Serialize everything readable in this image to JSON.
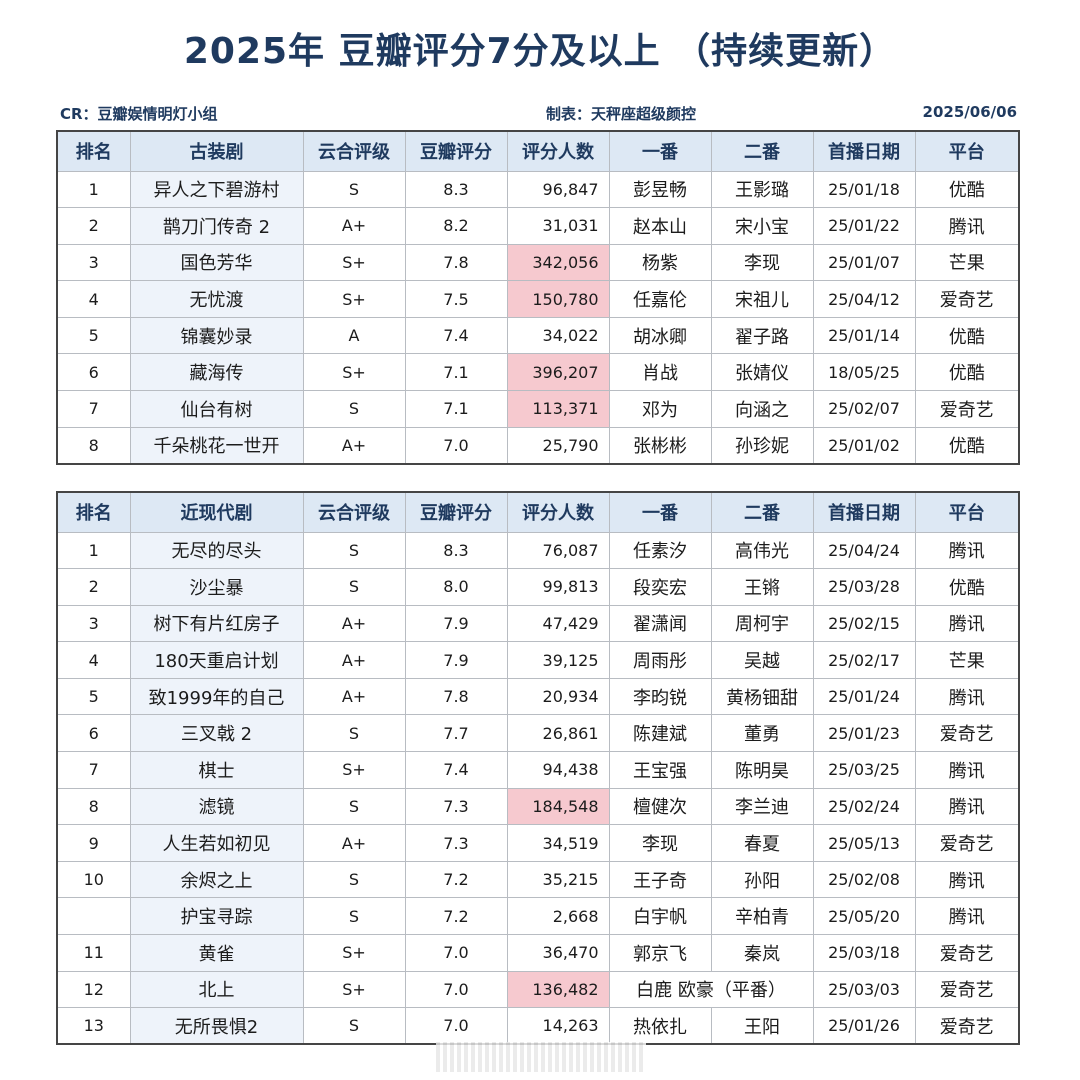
{
  "title": "2025年 豆瓣评分7分及以上 （持续更新）",
  "meta": {
    "cr": "CR：豆瓣娱情明灯小组",
    "maker": "制表：天秤座超级颜控",
    "date": "2025/06/06"
  },
  "colors": {
    "title": "#1f3a5f",
    "header_bg": "#dde8f4",
    "title_col_bg": "#eef3fa",
    "highlight": "#f6c9cf"
  },
  "costume": {
    "headers": [
      "排名",
      "古装剧",
      "云合评级",
      "豆瓣评分",
      "评分人数",
      "一番",
      "二番",
      "首播日期",
      "平台"
    ],
    "rows": [
      {
        "rank": "1",
        "title": "异人之下碧游村",
        "grade": "S",
        "score": "8.3",
        "count": "96,847",
        "lead1": "彭昱畅",
        "lead2": "王影璐",
        "date": "25/01/18",
        "platform": "优酷",
        "highlight": false
      },
      {
        "rank": "2",
        "title": "鹊刀门传奇 2",
        "grade": "A+",
        "score": "8.2",
        "count": "31,031",
        "lead1": "赵本山",
        "lead2": "宋小宝",
        "date": "25/01/22",
        "platform": "腾讯",
        "highlight": false
      },
      {
        "rank": "3",
        "title": "国色芳华",
        "grade": "S+",
        "score": "7.8",
        "count": "342,056",
        "lead1": "杨紫",
        "lead2": "李现",
        "date": "25/01/07",
        "platform": "芒果",
        "highlight": true
      },
      {
        "rank": "4",
        "title": "无忧渡",
        "grade": "S+",
        "score": "7.5",
        "count": "150,780",
        "lead1": "任嘉伦",
        "lead2": "宋祖儿",
        "date": "25/04/12",
        "platform": "爱奇艺",
        "highlight": true
      },
      {
        "rank": "5",
        "title": "锦囊妙录",
        "grade": "A",
        "score": "7.4",
        "count": "34,022",
        "lead1": "胡冰卿",
        "lead2": "翟子路",
        "date": "25/01/14",
        "platform": "优酷",
        "highlight": false
      },
      {
        "rank": "6",
        "title": "藏海传",
        "grade": "S+",
        "score": "7.1",
        "count": "396,207",
        "lead1": "肖战",
        "lead2": "张婧仪",
        "date": "18/05/25",
        "platform": "优酷",
        "highlight": true
      },
      {
        "rank": "7",
        "title": "仙台有树",
        "grade": "S",
        "score": "7.1",
        "count": "113,371",
        "lead1": "邓为",
        "lead2": "向涵之",
        "date": "25/02/07",
        "platform": "爱奇艺",
        "highlight": true
      },
      {
        "rank": "8",
        "title": "千朵桃花一世开",
        "grade": "A+",
        "score": "7.0",
        "count": "25,790",
        "lead1": "张彬彬",
        "lead2": "孙珍妮",
        "date": "25/01/02",
        "platform": "优酷",
        "highlight": false
      }
    ]
  },
  "modern": {
    "headers": [
      "排名",
      "近现代剧",
      "云合评级",
      "豆瓣评分",
      "评分人数",
      "一番",
      "二番",
      "首播日期",
      "平台"
    ],
    "rows": [
      {
        "rank": "1",
        "title": "无尽的尽头",
        "grade": "S",
        "score": "8.3",
        "count": "76,087",
        "lead1": "任素汐",
        "lead2": "高伟光",
        "date": "25/04/24",
        "platform": "腾讯",
        "highlight": false
      },
      {
        "rank": "2",
        "title": "沙尘暴",
        "grade": "S",
        "score": "8.0",
        "count": "99,813",
        "lead1": "段奕宏",
        "lead2": "王锵",
        "date": "25/03/28",
        "platform": "优酷",
        "highlight": false
      },
      {
        "rank": "3",
        "title": "树下有片红房子",
        "grade": "A+",
        "score": "7.9",
        "count": "47,429",
        "lead1": "翟潇闻",
        "lead2": "周柯宇",
        "date": "25/02/15",
        "platform": "腾讯",
        "highlight": false
      },
      {
        "rank": "4",
        "title": "180天重启计划",
        "grade": "A+",
        "score": "7.9",
        "count": "39,125",
        "lead1": "周雨彤",
        "lead2": "吴越",
        "date": "25/02/17",
        "platform": "芒果",
        "highlight": false
      },
      {
        "rank": "5",
        "title": "致1999年的自己",
        "grade": "A+",
        "score": "7.8",
        "count": "20,934",
        "lead1": "李昀锐",
        "lead2": "黄杨钿甜",
        "date": "25/01/24",
        "platform": "腾讯",
        "highlight": false
      },
      {
        "rank": "6",
        "title": "三叉戟 2",
        "grade": "S",
        "score": "7.7",
        "count": "26,861",
        "lead1": "陈建斌",
        "lead2": "董勇",
        "date": "25/01/23",
        "platform": "爱奇艺",
        "highlight": false
      },
      {
        "rank": "7",
        "title": "棋士",
        "grade": "S+",
        "score": "7.4",
        "count": "94,438",
        "lead1": "王宝强",
        "lead2": "陈明昊",
        "date": "25/03/25",
        "platform": "腾讯",
        "highlight": false
      },
      {
        "rank": "8",
        "title": "滤镜",
        "grade": "S",
        "score": "7.3",
        "count": "184,548",
        "lead1": "檀健次",
        "lead2": "李兰迪",
        "date": "25/02/24",
        "platform": "腾讯",
        "highlight": true
      },
      {
        "rank": "9",
        "title": "人生若如初见",
        "grade": "A+",
        "score": "7.3",
        "count": "34,519",
        "lead1": "李现",
        "lead2": "春夏",
        "date": "25/05/13",
        "platform": "爱奇艺",
        "highlight": false
      },
      {
        "rank": "10",
        "title": "余烬之上",
        "grade": "S",
        "score": "7.2",
        "count": "35,215",
        "lead1": "王子奇",
        "lead2": "孙阳",
        "date": "25/02/08",
        "platform": "腾讯",
        "highlight": false
      },
      {
        "rank": "",
        "title": "护宝寻踪",
        "grade": "S",
        "score": "7.2",
        "count": "2,668",
        "lead1": "白宇帆",
        "lead2": "辛柏青",
        "date": "25/05/20",
        "platform": "腾讯",
        "highlight": false
      },
      {
        "rank": "11",
        "title": "黄雀",
        "grade": "S+",
        "score": "7.0",
        "count": "36,470",
        "lead1": "郭京飞",
        "lead2": "秦岚",
        "date": "25/03/18",
        "platform": "爱奇艺",
        "highlight": false
      },
      {
        "rank": "12",
        "title": "北上",
        "grade": "S+",
        "score": "7.0",
        "count": "136,482",
        "lead1": "白鹿 欧豪（平番）",
        "lead2": "",
        "date": "25/03/03",
        "platform": "爱奇艺",
        "highlight": true
      },
      {
        "rank": "13",
        "title": "无所畏惧2",
        "grade": "S",
        "score": "7.0",
        "count": "14,263",
        "lead1": "热依扎",
        "lead2": "王阳",
        "date": "25/01/26",
        "platform": "爱奇艺",
        "highlight": false
      }
    ]
  }
}
